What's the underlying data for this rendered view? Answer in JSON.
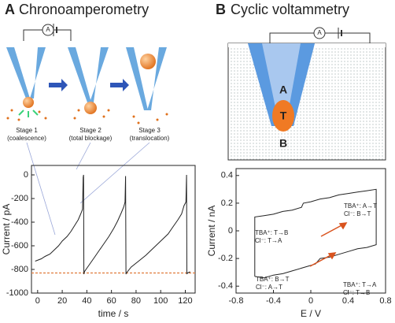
{
  "panels": [
    {
      "letter": "A",
      "title": "Chronoamperometry",
      "meter": "A",
      "stages": [
        {
          "label": "Stage 1",
          "note": "(coalescence)"
        },
        {
          "label": "Stage 2",
          "note": "(total blockage)"
        },
        {
          "label": "Stage 3",
          "note": "(translocation)"
        }
      ]
    },
    {
      "letter": "B",
      "title": "Cyclic voltammetry",
      "meter": "A",
      "regions": [
        "A",
        "T",
        "B"
      ]
    }
  ],
  "chart_data": [
    {
      "type": "line",
      "xlabel": "time / s",
      "ylabel": "Current / pA",
      "xlim": [
        -5,
        128
      ],
      "ylim": [
        -1000,
        80
      ],
      "xticks": [
        0,
        20,
        40,
        60,
        80,
        100,
        120
      ],
      "yticks": [
        -1000,
        -800,
        -600,
        -400,
        -200,
        0
      ],
      "reference_line": {
        "value": -830,
        "color": "#e07a3a"
      },
      "series": [
        {
          "color": "#222222",
          "x": [
            -2,
            3,
            6,
            10,
            13,
            17,
            20,
            24,
            27,
            30,
            33,
            35,
            36.5,
            37,
            37.3,
            37.6,
            38,
            42,
            46,
            50,
            54,
            58,
            62,
            65,
            68,
            70,
            71,
            71.5,
            71.8,
            72.2,
            76,
            82,
            88,
            94,
            100,
            106,
            110,
            114,
            117,
            119,
            120.5,
            121,
            121.3,
            121.7,
            124
          ],
          "values": [
            -730,
            -710,
            -690,
            -670,
            -640,
            -600,
            -560,
            -520,
            -480,
            -430,
            -380,
            -330,
            -290,
            -20,
            0,
            -840,
            -820,
            -760,
            -700,
            -640,
            -580,
            -520,
            -450,
            -390,
            -320,
            -270,
            -230,
            -10,
            -840,
            -830,
            -780,
            -730,
            -680,
            -620,
            -560,
            -500,
            -440,
            -380,
            -330,
            -260,
            -230,
            0,
            -840,
            -830,
            -820
          ]
        }
      ]
    },
    {
      "type": "line",
      "xlabel": "E / V",
      "ylabel": "Current / nA",
      "xlim": [
        -0.8,
        0.8
      ],
      "ylim": [
        -0.45,
        0.45
      ],
      "xticks": [
        -0.8,
        -0.4,
        0,
        0.4,
        0.8
      ],
      "yticks": [
        -0.4,
        -0.2,
        0,
        0.2,
        0.4
      ],
      "annotations": [
        "TBA⁺: T→B",
        "Cl⁻: T→A",
        "TBA⁺: A→T",
        "Cl⁻: B→T",
        "TBA⁺: B→T",
        "Cl⁻: A→T",
        "TBA⁺: T→A",
        "Cl⁻: T→B"
      ],
      "series": [
        {
          "color": "#222222",
          "x": [
            -0.6,
            -0.6,
            -0.5,
            -0.4,
            -0.3,
            -0.2,
            -0.1,
            -0.08,
            0,
            0.1,
            0.2,
            0.3,
            0.4,
            0.5,
            0.6,
            0.7,
            0.7,
            0.6,
            0.5,
            0.4,
            0.3,
            0.2,
            0.1,
            0.05,
            0,
            -0.1,
            -0.2,
            -0.3,
            -0.4,
            -0.5,
            -0.6
          ],
          "values": [
            -0.33,
            0.1,
            0.11,
            0.12,
            0.14,
            0.15,
            0.17,
            0.2,
            0.21,
            0.23,
            0.24,
            0.26,
            0.27,
            0.28,
            0.29,
            0.3,
            -0.1,
            -0.12,
            -0.13,
            -0.15,
            -0.17,
            -0.19,
            -0.2,
            -0.24,
            -0.25,
            -0.27,
            -0.29,
            -0.31,
            -0.32,
            -0.34,
            -0.33
          ]
        }
      ]
    }
  ]
}
